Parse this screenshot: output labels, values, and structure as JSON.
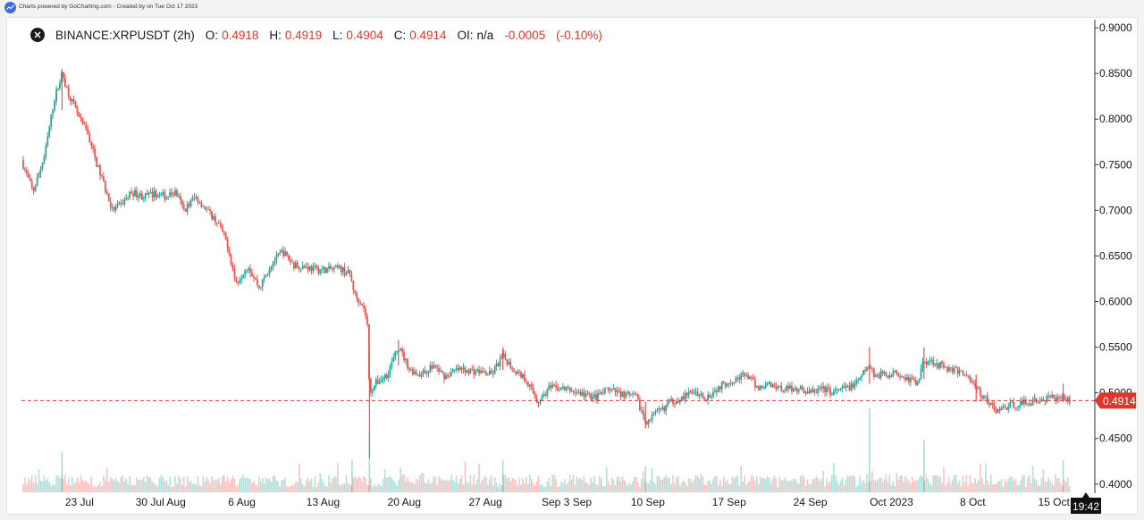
{
  "credit_text": "Charts powered by GoCharting.com - Created by  on Tue Oct 17 2023",
  "legend": {
    "symbol": "BINANCE:XRPUSDT (2h)",
    "o_label": "O:",
    "o_value": "0.4918",
    "h_label": "H:",
    "h_value": "0.4919",
    "l_label": "L:",
    "l_value": "0.4904",
    "c_label": "C:",
    "c_value": "0.4914",
    "oi_label": "OI:",
    "oi_value": "n/a",
    "change": "-0.0005",
    "change_pct": "(-0.10%)"
  },
  "colors": {
    "up": "#26a69a",
    "down": "#ef5350",
    "price_line": "#e0352b",
    "text": "#131722"
  },
  "chart_data": {
    "type": "candlestick",
    "symbol": "BINANCE:XRPUSDT",
    "interval": "2h",
    "ylim": [
      0.39,
      0.905
    ],
    "y_ticks": [
      "0.9000",
      "0.8500",
      "0.8000",
      "0.7500",
      "0.7000",
      "0.6500",
      "0.6000",
      "0.5500",
      "0.5000",
      "0.4500",
      "0.4000"
    ],
    "x_ticks": [
      {
        "label": "23 Jul",
        "t": 4.5
      },
      {
        "label": "30 Jul Aug",
        "t": 11.5
      },
      {
        "label": "6 Aug",
        "t": 18.5
      },
      {
        "label": "13 Aug",
        "t": 25.5
      },
      {
        "label": "20 Aug",
        "t": 32.5
      },
      {
        "label": "27 Aug",
        "t": 39.5
      },
      {
        "label": "Sep 3 Sep",
        "t": 46.5
      },
      {
        "label": "10 Sep",
        "t": 53.5
      },
      {
        "label": "17 Sep",
        "t": 60.5
      },
      {
        "label": "24 Sep",
        "t": 67.5
      },
      {
        "label": "Oct 2023",
        "t": 74.5
      },
      {
        "label": "8 Oct",
        "t": 81.5
      },
      {
        "label": "15 Oct",
        "t": 88.5
      }
    ],
    "t_range": [
      -0.5,
      91.8
    ],
    "last_price": "0.4914",
    "current_time": "19:42",
    "close_path": [
      [
        -0.5,
        0.755
      ],
      [
        0.5,
        0.72
      ],
      [
        1.5,
        0.76
      ],
      [
        2.3,
        0.82
      ],
      [
        3.0,
        0.85
      ],
      [
        3.5,
        0.83
      ],
      [
        4.5,
        0.8
      ],
      [
        5.2,
        0.785
      ],
      [
        6.0,
        0.75
      ],
      [
        6.7,
        0.725
      ],
      [
        7.3,
        0.7
      ],
      [
        8.0,
        0.705
      ],
      [
        9.0,
        0.72
      ],
      [
        10.0,
        0.715
      ],
      [
        11.0,
        0.718
      ],
      [
        12.0,
        0.715
      ],
      [
        12.8,
        0.72
      ],
      [
        13.5,
        0.7
      ],
      [
        14.5,
        0.715
      ],
      [
        15.5,
        0.7
      ],
      [
        16.5,
        0.685
      ],
      [
        17.2,
        0.665
      ],
      [
        18.0,
        0.62
      ],
      [
        19.0,
        0.64
      ],
      [
        20.0,
        0.615
      ],
      [
        21.0,
        0.64
      ],
      [
        22.0,
        0.655
      ],
      [
        23.0,
        0.64
      ],
      [
        24.0,
        0.638
      ],
      [
        25.0,
        0.635
      ],
      [
        26.0,
        0.635
      ],
      [
        27.0,
        0.636
      ],
      [
        27.8,
        0.63
      ],
      [
        28.3,
        0.605
      ],
      [
        28.8,
        0.6
      ],
      [
        29.3,
        0.58
      ],
      [
        29.5,
        0.5
      ],
      [
        30.0,
        0.51
      ],
      [
        31.0,
        0.52
      ],
      [
        32.0,
        0.55
      ],
      [
        33.0,
        0.525
      ],
      [
        34.0,
        0.52
      ],
      [
        35.0,
        0.53
      ],
      [
        36.0,
        0.518
      ],
      [
        37.0,
        0.525
      ],
      [
        38.0,
        0.525
      ],
      [
        39.0,
        0.523
      ],
      [
        40.0,
        0.52
      ],
      [
        41.0,
        0.54
      ],
      [
        42.0,
        0.525
      ],
      [
        43.0,
        0.515
      ],
      [
        44.0,
        0.49
      ],
      [
        45.0,
        0.505
      ],
      [
        46.0,
        0.505
      ],
      [
        47.0,
        0.502
      ],
      [
        48.0,
        0.498
      ],
      [
        49.0,
        0.495
      ],
      [
        50.0,
        0.503
      ],
      [
        51.0,
        0.5
      ],
      [
        52.5,
        0.495
      ],
      [
        53.3,
        0.468
      ],
      [
        54.5,
        0.48
      ],
      [
        55.5,
        0.49
      ],
      [
        56.5,
        0.495
      ],
      [
        57.5,
        0.502
      ],
      [
        58.5,
        0.495
      ],
      [
        59.0,
        0.5
      ],
      [
        60.0,
        0.51
      ],
      [
        61.0,
        0.515
      ],
      [
        62.0,
        0.52
      ],
      [
        63.0,
        0.505
      ],
      [
        64.0,
        0.51
      ],
      [
        65.0,
        0.505
      ],
      [
        66.5,
        0.505
      ],
      [
        67.5,
        0.5
      ],
      [
        68.5,
        0.505
      ],
      [
        69.5,
        0.5
      ],
      [
        70.5,
        0.505
      ],
      [
        71.5,
        0.51
      ],
      [
        72.5,
        0.53
      ],
      [
        73.0,
        0.52
      ],
      [
        74.0,
        0.52
      ],
      [
        75.0,
        0.522
      ],
      [
        76.0,
        0.515
      ],
      [
        76.8,
        0.51
      ],
      [
        77.2,
        0.535
      ],
      [
        78.0,
        0.535
      ],
      [
        79.0,
        0.528
      ],
      [
        80.0,
        0.525
      ],
      [
        81.0,
        0.52
      ],
      [
        81.8,
        0.505
      ],
      [
        82.5,
        0.495
      ],
      [
        83.5,
        0.48
      ],
      [
        84.5,
        0.485
      ],
      [
        85.5,
        0.488
      ],
      [
        86.5,
        0.49
      ],
      [
        87.5,
        0.492
      ],
      [
        88.5,
        0.495
      ],
      [
        89.0,
        0.497
      ],
      [
        89.5,
        0.493
      ],
      [
        89.85,
        0.4914
      ]
    ],
    "spikes": [
      {
        "t": 29.5,
        "low": 0.428,
        "high": 0.545
      },
      {
        "t": 3.0,
        "low": 0.81,
        "high": 0.855
      },
      {
        "t": 32.0,
        "low": 0.53,
        "high": 0.558
      },
      {
        "t": 41.0,
        "low": 0.525,
        "high": 0.55
      },
      {
        "t": 53.3,
        "low": 0.461,
        "high": 0.49
      },
      {
        "t": 72.6,
        "low": 0.51,
        "high": 0.55
      },
      {
        "t": 77.3,
        "low": 0.515,
        "high": 0.55
      },
      {
        "t": 81.8,
        "low": 0.49,
        "high": 0.52
      },
      {
        "t": 89.3,
        "low": 0.49,
        "high": 0.51
      }
    ],
    "volume_spikes": [
      {
        "t": 29.5,
        "v": 1.0
      },
      {
        "t": 28.0,
        "v": 0.55
      },
      {
        "t": 41.0,
        "v": 0.55
      },
      {
        "t": 72.6,
        "v": 1.45
      },
      {
        "t": 77.3,
        "v": 0.9
      },
      {
        "t": 3.0,
        "v": 0.7
      },
      {
        "t": 53.3,
        "v": 0.45
      },
      {
        "t": 89.3,
        "v": 0.55
      }
    ]
  }
}
